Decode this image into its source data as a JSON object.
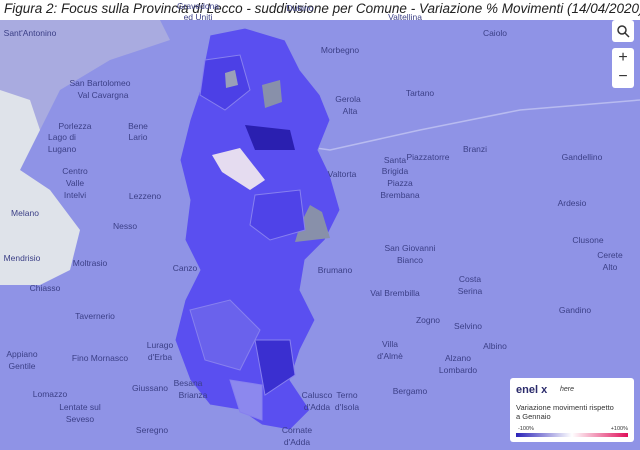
{
  "header": {
    "title": "Figura 2: Focus sulla Provincia di Lecco - suddivisione per Comune - Variazione % Movimenti (14/04/2020)"
  },
  "map": {
    "places": [
      "Sant'Antonino",
      "Gravedona",
      "ed Uniti",
      "Dubino",
      "Valtellina",
      "Caiolo",
      "Morbegno",
      "Tartano",
      "San Bartolomeo",
      "Val Cavargna",
      "Porlezza",
      "Bene",
      "Lario",
      "Lago di",
      "Lugano",
      "Gerola",
      "Alta",
      "Branzi",
      "Piazzatorre",
      "Santa",
      "Brigida",
      "Piazza",
      "Brembana",
      "Gandellino",
      "Ardesio",
      "Clusone",
      "Cerete",
      "Alto",
      "Centro",
      "Valle",
      "Intelvi",
      "Lezzeno",
      "Nesso",
      "Melano",
      "Mendrisio",
      "Moltrasio",
      "Chiasso",
      "San Giovanni",
      "Bianco",
      "Valtorta",
      "Brumano",
      "Val Brembilla",
      "Costa",
      "Serina",
      "Zogno",
      "Gandino",
      "Selvino",
      "Albino",
      "Villa",
      "d'Almè",
      "Alzano",
      "Lombardo",
      "Tavernerio",
      "Canzo",
      "Lurago",
      "d'Erba",
      "Appiano",
      "Gentile",
      "Fino Mornasco",
      "Bergamo",
      "Giussano",
      "Besana",
      "Brianza",
      "Lomazzo",
      "Lentate sul",
      "Seveso",
      "Seregno",
      "Calusco",
      "d'Adda",
      "Terno",
      "d'Isola",
      "Cornate",
      "d'Adda"
    ],
    "controls": {
      "zoom_in": "+",
      "zoom_out": "−"
    }
  },
  "legend": {
    "brand": "enel x",
    "partner": "here",
    "title_line1": "Variazione movimenti rispetto",
    "title_line2": "a Gennaio",
    "min": "-100%",
    "max": "+100%"
  }
}
